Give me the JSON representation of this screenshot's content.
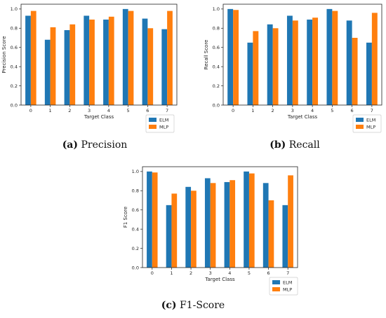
{
  "chart_data": [
    {
      "type": "bar",
      "panel": "a",
      "caption_letter": "(a)",
      "caption_text": "Precision",
      "xlabel": "Target Class",
      "ylabel": "Precision Score",
      "categories": [
        "0",
        "1",
        "2",
        "3",
        "4",
        "5",
        "6",
        "7"
      ],
      "ylim": [
        0,
        1.05
      ],
      "yticks": [
        "0.0",
        "0.2",
        "0.4",
        "0.6",
        "0.8",
        "1.0"
      ],
      "legend_position": "bottom-right",
      "series": [
        {
          "name": "ELM",
          "color": "#1f77b4",
          "values": [
            0.93,
            0.68,
            0.78,
            0.93,
            0.89,
            1.0,
            0.9,
            0.79
          ]
        },
        {
          "name": "MLP",
          "color": "#ff7f0e",
          "values": [
            0.98,
            0.81,
            0.84,
            0.89,
            0.92,
            0.98,
            0.8,
            0.98
          ]
        }
      ]
    },
    {
      "type": "bar",
      "panel": "b",
      "caption_letter": "(b)",
      "caption_text": "Recall",
      "xlabel": "Target Class",
      "ylabel": "Recall Score",
      "categories": [
        "0",
        "1",
        "2",
        "3",
        "4",
        "5",
        "6",
        "7"
      ],
      "ylim": [
        0,
        1.05
      ],
      "yticks": [
        "0.0",
        "0.2",
        "0.4",
        "0.6",
        "0.8",
        "1.0"
      ],
      "legend_position": "bottom-right",
      "series": [
        {
          "name": "ELM",
          "color": "#1f77b4",
          "values": [
            1.0,
            0.65,
            0.84,
            0.93,
            0.89,
            1.0,
            0.88,
            0.65
          ]
        },
        {
          "name": "MLP",
          "color": "#ff7f0e",
          "values": [
            0.99,
            0.77,
            0.8,
            0.88,
            0.91,
            0.98,
            0.7,
            0.96
          ]
        }
      ]
    },
    {
      "type": "bar",
      "panel": "c",
      "caption_letter": "(c)",
      "caption_text": "F1-Score",
      "xlabel": "Target Class",
      "ylabel": "F1 Score",
      "categories": [
        "0",
        "1",
        "2",
        "3",
        "4",
        "5",
        "6",
        "7"
      ],
      "ylim": [
        0,
        1.05
      ],
      "yticks": [
        "0.0",
        "0.2",
        "0.4",
        "0.6",
        "0.8",
        "1.0"
      ],
      "legend_position": "bottom-right",
      "series": [
        {
          "name": "ELM",
          "color": "#1f77b4",
          "values": [
            1.0,
            0.65,
            0.84,
            0.93,
            0.89,
            1.0,
            0.88,
            0.65
          ]
        },
        {
          "name": "MLP",
          "color": "#ff7f0e",
          "values": [
            0.99,
            0.77,
            0.8,
            0.88,
            0.91,
            0.98,
            0.7,
            0.96
          ]
        }
      ]
    }
  ]
}
